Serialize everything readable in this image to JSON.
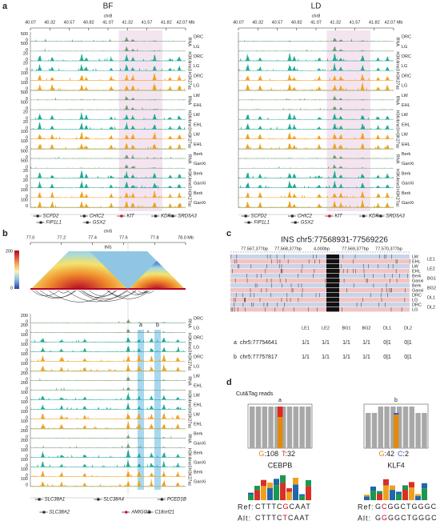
{
  "panel_labels": [
    "a",
    "b",
    "c",
    "d"
  ],
  "panel_a": {
    "conditions": [
      "BF",
      "LD"
    ],
    "chrom": "chr8",
    "ticks": [
      "40.07",
      "40.32",
      "40.57",
      "40.82",
      "41.07",
      "41.32",
      "41.57",
      "41.82",
      "42.07 Mb"
    ],
    "marks": [
      "RNA",
      "H3K4me3",
      "H3K27ac"
    ],
    "groups": [
      [
        "DRC",
        "LG"
      ],
      [
        "LW",
        "EHL"
      ],
      [
        "Berk",
        "GanXi"
      ]
    ],
    "scale_max": [
      "500",
      "20",
      "100"
    ],
    "scale_min": "0",
    "genes": [
      "SCFD2",
      "FIP1L1",
      "CHIC2",
      "GSX2",
      "KIT",
      "KDR",
      "SRD5A3"
    ]
  },
  "panel_b": {
    "chrom": "chr5",
    "ticks": [
      "77.0",
      "77.2",
      "77.4",
      "77.6",
      "77.8",
      "78.0 Mb"
    ],
    "locus": "INS",
    "colorbar": [
      "200",
      "0"
    ],
    "sites": [
      "a",
      "b"
    ],
    "marks": [
      "RNA",
      "H3K4me3",
      "H3K27ac"
    ],
    "groups": [
      [
        "DRC",
        "LG"
      ],
      [
        "LW",
        "EHL"
      ],
      [
        "Berk",
        "GanXi"
      ]
    ],
    "scale_max": [
      "200",
      "100",
      "100"
    ],
    "scale_min": "0",
    "genes": [
      "SLC38A1",
      "SLC38A2",
      "SLC38A4",
      "AMIGO2",
      "PCED1B",
      "C18orf21"
    ]
  },
  "panel_c": {
    "title": "INS  chr5:77568931-77569226",
    "ruler": [
      "77,567,377bp",
      "77,568,377bp",
      "4,000bp",
      "77,569,377bp",
      "77,570,377bp"
    ],
    "groups": [
      {
        "name": "LE1",
        "samples": [
          "LW",
          "EHL"
        ]
      },
      {
        "name": "LE2",
        "samples": [
          "LW",
          "EHL"
        ]
      },
      {
        "name": "BG1",
        "samples": [
          "Berk",
          "Ganxi"
        ]
      },
      {
        "name": "BG2",
        "samples": [
          "Berk",
          "Ganxi"
        ]
      },
      {
        "name": "DL1",
        "samples": [
          "DRC",
          "LG"
        ]
      },
      {
        "name": "DL2",
        "samples": [
          "DRC",
          "LG"
        ]
      }
    ],
    "table": {
      "header": [
        "LE1",
        "LE2",
        "BG1",
        "BG2",
        "DL1",
        "DL2"
      ],
      "rows": [
        [
          "a",
          "chr5:77754641",
          "1/1",
          "1/1",
          "1/1",
          "1/1",
          "0|1",
          "0|1"
        ],
        [
          "b",
          "chr5:77757817",
          "1/1",
          "1/1",
          "1/1",
          "1/1",
          "0|1",
          "0|1"
        ]
      ]
    }
  },
  "panel_d": {
    "title": "Cut&Tag reads",
    "ref_label": "Ref:",
    "alt_label": "Alt:",
    "sites": [
      {
        "label": "a",
        "counts": [
          "G:108",
          "T:32"
        ],
        "motif": "CEBPB",
        "ref": "CTTTCGCAAT",
        "alt": "CTTTCTCAAT"
      },
      {
        "label": "b",
        "counts": [
          "G:42",
          "C:2"
        ],
        "motif": "KLF4",
        "ref": "GCGGCTGGGC",
        "alt": "GGGGCTGGGC"
      }
    ]
  }
}
